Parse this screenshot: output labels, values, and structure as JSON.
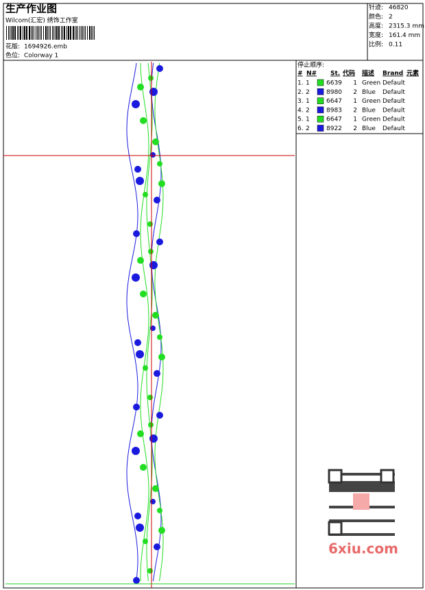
{
  "header": {
    "title": "生产作业图",
    "studio": "Wilcom(汇宏) 绣饰工作室",
    "design": {
      "label": "花版:",
      "value": "1694926.emb"
    },
    "colorway": {
      "label": "色位:",
      "value": "Colorway 1"
    }
  },
  "info": [
    {
      "label": "针迹:",
      "value": "46820"
    },
    {
      "label": "颜色:",
      "value": "2"
    },
    {
      "label": "高度:",
      "value": "2315.3 mm"
    },
    {
      "label": "宽度:",
      "value": "161.4 mm"
    },
    {
      "label": "比例:",
      "value": "0.11"
    }
  ],
  "stop_sequence": {
    "title": "停止顺序:",
    "columns": [
      "#",
      "N#",
      "St.",
      "代码",
      "描述",
      "Brand",
      "元素"
    ],
    "rows": [
      {
        "index": "1.",
        "needle": "1",
        "color": "#22dd22",
        "code": "6639",
        "number": "1",
        "description": "Green",
        "brand": "Default"
      },
      {
        "index": "2.",
        "needle": "2",
        "color": "#1a1adf",
        "code": "8980",
        "number": "2",
        "description": "Blue",
        "brand": "Default"
      },
      {
        "index": "3.",
        "needle": "1",
        "color": "#22dd22",
        "code": "6647",
        "number": "1",
        "description": "Green",
        "brand": "Default"
      },
      {
        "index": "4.",
        "needle": "2",
        "color": "#1a1adf",
        "code": "8983",
        "number": "2",
        "description": "Blue",
        "brand": "Default"
      },
      {
        "index": "5.",
        "needle": "1",
        "color": "#22dd22",
        "code": "6647",
        "number": "1",
        "description": "Green",
        "brand": "Default"
      },
      {
        "index": "6.",
        "needle": "2",
        "color": "#1a1adf",
        "code": "8922",
        "number": "2",
        "description": "Blue",
        "brand": "Default"
      }
    ]
  },
  "watermark": "6xiu.com"
}
